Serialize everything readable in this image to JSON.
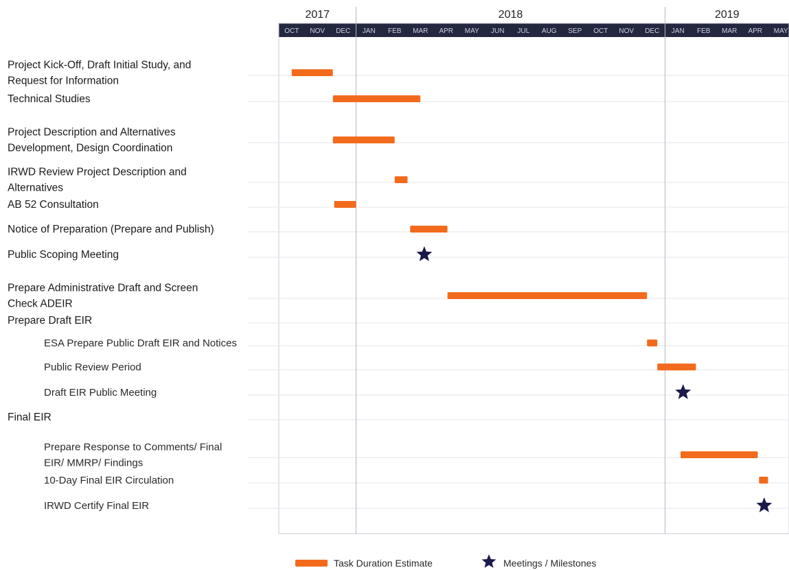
{
  "chart_data": {
    "type": "gantt",
    "years": [
      {
        "label": "2017",
        "start": 0,
        "end": 3
      },
      {
        "label": "2018",
        "start": 3,
        "end": 15
      },
      {
        "label": "2019",
        "start": 15,
        "end": 20
      }
    ],
    "months": [
      "OCT",
      "NOV",
      "DEC",
      "JAN",
      "FEB",
      "MAR",
      "APR",
      "MAY",
      "JUN",
      "JUL",
      "AUG",
      "SEP",
      "OCT",
      "NOV",
      "DEC",
      "JAN",
      "FEB",
      "MAR",
      "APR",
      "MAY"
    ],
    "year_boundaries": [
      3,
      15
    ],
    "colors": {
      "bar": "#f26b1d",
      "milestone": "#1b1a4a",
      "header_bg": "#23273f",
      "grid": "#e6e6ec",
      "divider": "#b5b8c4"
    },
    "tasks": [
      {
        "lines": [
          "Project Kick-Off, Draft Initial Study, and",
          "Request for Information"
        ],
        "indent": 0,
        "start": 0.5,
        "end": 2.1
      },
      {
        "lines": [
          "Technical Studies"
        ],
        "indent": 0,
        "start": 2.1,
        "end": 5.5
      },
      {
        "lines": [
          "Project Description and Alternatives",
          "Development, Design Coordination"
        ],
        "indent": 0,
        "start": 2.1,
        "end": 4.5
      },
      {
        "lines": [
          "IRWD Review Project Description and",
          "Alternatives"
        ],
        "indent": 0,
        "start": 4.5,
        "end": 5.0
      },
      {
        "lines": [
          "AB 52 Consultation"
        ],
        "indent": 0,
        "start": 2.15,
        "end": 3.0
      },
      {
        "lines": [
          "Notice of Preparation (Prepare and Publish)"
        ],
        "indent": 0,
        "start": 5.1,
        "end": 6.55
      },
      {
        "lines": [
          "Public Scoping Meeting"
        ],
        "indent": 0,
        "milestone": 5.65
      },
      {
        "lines": [
          "Prepare Administrative Draft and Screen",
          "Check ADEIR"
        ],
        "indent": 0,
        "start": 6.55,
        "end": 14.3
      },
      {
        "lines": [
          "Prepare Draft EIR"
        ],
        "indent": 0
      },
      {
        "lines": [
          "ESA Prepare Public Draft EIR and Notices"
        ],
        "indent": 1,
        "start": 14.3,
        "end": 14.7
      },
      {
        "lines": [
          "Public Review Period"
        ],
        "indent": 1,
        "start": 14.7,
        "end": 16.2
      },
      {
        "lines": [
          "Draft EIR Public Meeting"
        ],
        "indent": 1,
        "milestone": 15.7
      },
      {
        "lines": [
          "Final EIR"
        ],
        "indent": 0
      },
      {
        "lines": [
          "Prepare Response to Comments/ Final",
          "EIR/ MMRP/ Findings"
        ],
        "indent": 1,
        "start": 15.6,
        "end": 18.6
      },
      {
        "lines": [
          "10-Day Final EIR Circulation"
        ],
        "indent": 1,
        "start": 18.65,
        "end": 19.0
      },
      {
        "lines": [
          "IRWD Certify Final EIR"
        ],
        "indent": 1,
        "milestone": 18.85
      }
    ],
    "legend": [
      {
        "label": "Task Duration Estimate",
        "kind": "bar"
      },
      {
        "label": "Meetings / Milestones",
        "kind": "milestone"
      }
    ]
  }
}
